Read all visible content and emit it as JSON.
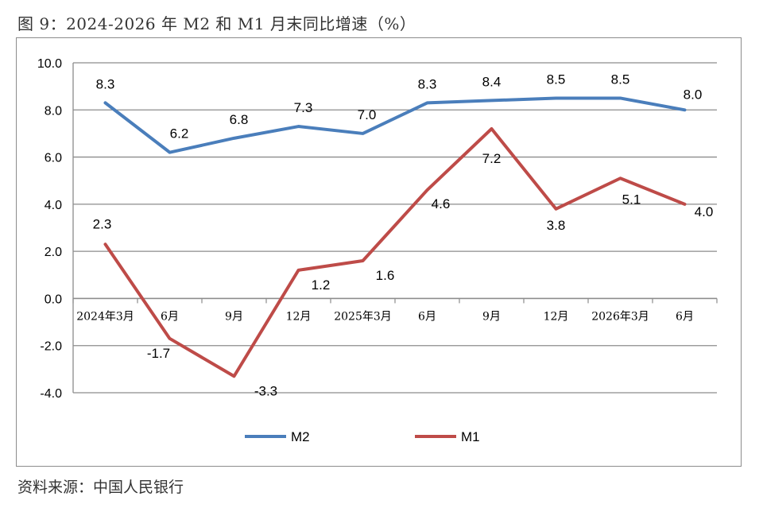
{
  "figure": {
    "title": "图 9：2024-2026 年 M2 和 M1 月末同比增速（%）",
    "source": "资料来源：中国人民银行"
  },
  "chart_data": {
    "type": "line",
    "categories": [
      "2024年3月",
      "6月",
      "9月",
      "12月",
      "2025年3月",
      "6月",
      "9月",
      "12月",
      "2026年3月",
      "6月"
    ],
    "series": [
      {
        "name": "M2",
        "color": "#4a7ebb",
        "values": [
          8.3,
          6.2,
          6.8,
          7.3,
          7.0,
          8.3,
          8.4,
          8.5,
          8.5,
          8.0
        ]
      },
      {
        "name": "M1",
        "color": "#be4b48",
        "values": [
          2.3,
          -1.7,
          -3.3,
          1.2,
          1.6,
          4.6,
          7.2,
          3.8,
          5.1,
          4.0
        ]
      }
    ],
    "ylim": [
      -4.0,
      10.0
    ],
    "yticks": [
      -4.0,
      -2.0,
      0.0,
      2.0,
      4.0,
      6.0,
      8.0,
      10.0
    ],
    "grid": true,
    "legend": "bottom-center",
    "data_labels": true
  }
}
